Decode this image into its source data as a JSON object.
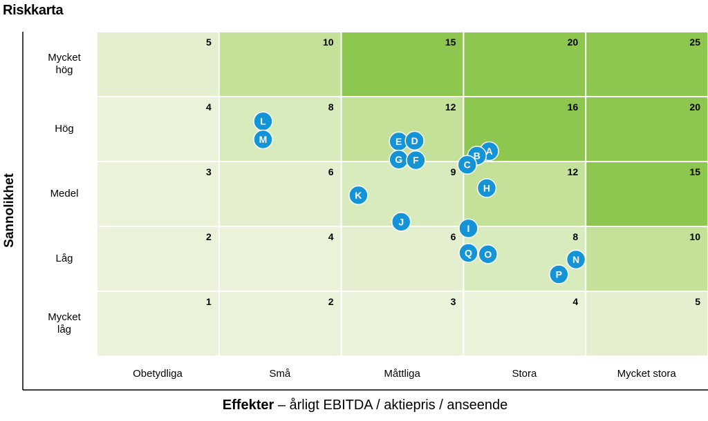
{
  "title": "Riskkarta",
  "chart_data": {
    "type": "scatter",
    "title": "Riskkarta",
    "ylabel": "Sannolikhet",
    "xlabel_bold": "Effekter",
    "xlabel_rest": " – årligt EBITDA / aktiepris / anseende",
    "x_categories": [
      "Obetydliga",
      "Små",
      "Måttliga",
      "Stora",
      "Mycket stora"
    ],
    "y_categories_top_to_bottom": [
      [
        "Mycket",
        "hög"
      ],
      [
        "Hög"
      ],
      [
        "Medel"
      ],
      [
        "Låg"
      ],
      [
        "Mycket",
        "låg"
      ]
    ],
    "cell_scores_top_to_bottom": [
      [
        5,
        10,
        15,
        20,
        25
      ],
      [
        4,
        8,
        12,
        16,
        20
      ],
      [
        3,
        6,
        9,
        12,
        15
      ],
      [
        2,
        4,
        6,
        8,
        10
      ],
      [
        1,
        2,
        3,
        4,
        5
      ]
    ],
    "cell_color_scale": {
      "1": "#eaf3da",
      "2": "#eaf3da",
      "3": "#eaf3da",
      "4": "#eaf3da",
      "5": "#e3efcf",
      "6": "#e3efcf",
      "8": "#d8ebbd",
      "9": "#d8ebbd",
      "10": "#c3e199",
      "12": "#c3e199",
      "15": "#8dc74f",
      "16": "#8dc74f",
      "20": "#8dc74f",
      "25": "#8dc74f"
    },
    "marker_color": "#1494d6",
    "marker_text_color": "#ffffff",
    "x_range": [
      0,
      5
    ],
    "y_range": [
      0,
      5
    ],
    "points": [
      {
        "label": "L",
        "x": 1.36,
        "y": 3.62
      },
      {
        "label": "M",
        "x": 1.36,
        "y": 3.34
      },
      {
        "label": "E",
        "x": 2.47,
        "y": 3.31
      },
      {
        "label": "D",
        "x": 2.6,
        "y": 3.32
      },
      {
        "label": "G",
        "x": 2.47,
        "y": 3.03
      },
      {
        "label": "F",
        "x": 2.61,
        "y": 3.02
      },
      {
        "label": "A",
        "x": 3.21,
        "y": 3.16
      },
      {
        "label": "B",
        "x": 3.11,
        "y": 3.09
      },
      {
        "label": "C",
        "x": 3.03,
        "y": 2.95
      },
      {
        "label": "H",
        "x": 3.19,
        "y": 2.59
      },
      {
        "label": "K",
        "x": 2.14,
        "y": 2.48
      },
      {
        "label": "J",
        "x": 2.49,
        "y": 2.07
      },
      {
        "label": "I",
        "x": 3.04,
        "y": 1.97
      },
      {
        "label": "Q",
        "x": 3.04,
        "y": 1.59
      },
      {
        "label": "O",
        "x": 3.2,
        "y": 1.57
      },
      {
        "label": "N",
        "x": 3.92,
        "y": 1.49
      },
      {
        "label": "P",
        "x": 3.78,
        "y": 1.26
      }
    ],
    "grid": true,
    "legend": "none"
  }
}
